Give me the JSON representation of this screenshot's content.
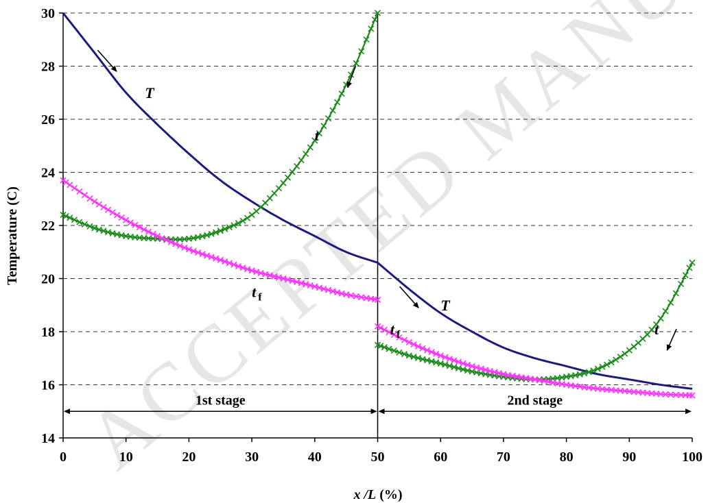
{
  "chart_data": {
    "type": "line",
    "title": "",
    "xlabel": {
      "var": "x /L",
      "unit": " (%)"
    },
    "ylabel": "Temperature (C)",
    "xlim": [
      0,
      100
    ],
    "ylim": [
      14,
      30
    ],
    "xticks": [
      0,
      10,
      20,
      30,
      40,
      50,
      60,
      70,
      80,
      90,
      100
    ],
    "yticks": [
      14,
      16,
      18,
      20,
      22,
      24,
      26,
      28,
      30
    ],
    "grid": "horizontal-dashed",
    "legend": "none",
    "stage_divider_x": 50,
    "stages": [
      {
        "label": "1st stage",
        "x_range": [
          0,
          50
        ]
      },
      {
        "label": "2nd stage",
        "x_range": [
          50,
          100
        ]
      }
    ],
    "watermark": "ACCEPTED MANUSCRIPT",
    "series": [
      {
        "key": "T1",
        "marker": "none",
        "color": "#1a1a80",
        "x": [
          0,
          5,
          10,
          15,
          20,
          25,
          30,
          35,
          40,
          45,
          50
        ],
        "y": [
          30.0,
          28.5,
          27.0,
          25.8,
          24.7,
          23.7,
          22.9,
          22.2,
          21.6,
          21.0,
          20.6
        ]
      },
      {
        "key": "t1",
        "marker": "x",
        "color": "#1a8a1a",
        "x": [
          0,
          5,
          10,
          15,
          20,
          25,
          30,
          35,
          40,
          45,
          50
        ],
        "y": [
          22.4,
          21.9,
          21.6,
          21.5,
          21.5,
          21.8,
          22.4,
          23.6,
          25.2,
          27.3,
          30.0
        ]
      },
      {
        "key": "tf1",
        "marker": "x",
        "color": "#ff33ff",
        "x": [
          0,
          5,
          10,
          15,
          20,
          25,
          30,
          35,
          40,
          45,
          50
        ],
        "y": [
          23.7,
          22.9,
          22.2,
          21.6,
          21.1,
          20.7,
          20.3,
          20.0,
          19.7,
          19.4,
          19.2
        ]
      },
      {
        "key": "T2",
        "marker": "none",
        "color": "#1a1a80",
        "x": [
          50,
          55,
          60,
          65,
          70,
          75,
          80,
          85,
          90,
          95,
          100
        ],
        "y": [
          20.6,
          19.6,
          18.7,
          18.0,
          17.4,
          17.0,
          16.7,
          16.4,
          16.2,
          16.0,
          15.85
        ]
      },
      {
        "key": "t2",
        "marker": "x",
        "color": "#1a8a1a",
        "x": [
          50,
          55,
          60,
          65,
          70,
          75,
          80,
          85,
          90,
          95,
          100
        ],
        "y": [
          17.5,
          17.1,
          16.8,
          16.5,
          16.3,
          16.2,
          16.3,
          16.6,
          17.3,
          18.5,
          20.6
        ]
      },
      {
        "key": "tf2",
        "marker": "x",
        "color": "#ff33ff",
        "x": [
          50,
          55,
          60,
          65,
          70,
          75,
          80,
          85,
          90,
          95,
          100
        ],
        "y": [
          18.2,
          17.6,
          17.1,
          16.7,
          16.4,
          16.2,
          16.0,
          15.85,
          15.75,
          15.65,
          15.6
        ]
      }
    ],
    "annotations": [
      {
        "text": "T",
        "sub": "",
        "x": 13,
        "y": 26.8
      },
      {
        "text": "t",
        "sub": "",
        "x": 40,
        "y": 25.2
      },
      {
        "text": "t",
        "sub": "f",
        "x": 30,
        "y": 19.3
      },
      {
        "text": "T",
        "sub": "",
        "x": 60,
        "y": 18.8
      },
      {
        "text": "t",
        "sub": "f",
        "x": 52,
        "y": 17.9
      },
      {
        "text": "t",
        "sub": "",
        "x": 94,
        "y": 17.9
      }
    ],
    "direction_arrows": [
      {
        "from": [
          5.5,
          28.6
        ],
        "to": [
          8.5,
          27.8
        ]
      },
      {
        "from": [
          46.5,
          28.0
        ],
        "to": [
          45.2,
          27.2
        ]
      },
      {
        "from": [
          53.5,
          19.7
        ],
        "to": [
          56.5,
          18.9
        ]
      },
      {
        "from": [
          97.5,
          18.1
        ],
        "to": [
          96.0,
          17.3
        ]
      }
    ]
  }
}
